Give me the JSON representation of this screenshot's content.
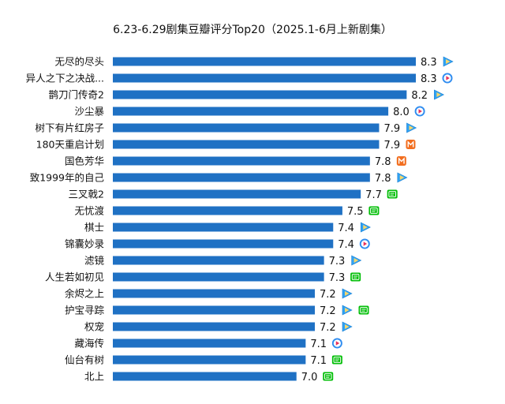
{
  "chart_data": {
    "type": "bar",
    "orientation": "horizontal",
    "title": "6.23-6.29剧集豆瓣评分Top20（2025.1-6月上新剧集）",
    "categories": [
      "无尽的尽头",
      "异人之下之决战...",
      "鹊刀门传奇2",
      "沙尘暴",
      "树下有片红房子",
      "180天重启计划",
      "国色芳华",
      "致1999年的自己",
      "三叉戟2",
      "无忧渡",
      "棋士",
      "锦囊妙录",
      "滤镜",
      "人生若如初见",
      "余烬之上",
      "护宝寻踪",
      "权宠",
      "藏海传",
      "仙台有树",
      "北上"
    ],
    "values": [
      8.3,
      8.3,
      8.2,
      8.0,
      7.9,
      7.9,
      7.8,
      7.8,
      7.7,
      7.5,
      7.4,
      7.4,
      7.3,
      7.3,
      7.2,
      7.2,
      7.2,
      7.1,
      7.1,
      7.0
    ],
    "value_labels": [
      "8.3",
      "8.3",
      "8.2",
      "8.0",
      "7.9",
      "7.9",
      "7.8",
      "7.8",
      "7.7",
      "7.5",
      "7.4",
      "7.4",
      "7.3",
      "7.3",
      "7.2",
      "7.2",
      "7.2",
      "7.1",
      "7.1",
      "7.0"
    ],
    "platforms": [
      [
        "tencent"
      ],
      [
        "youku"
      ],
      [
        "tencent"
      ],
      [
        "youku"
      ],
      [
        "tencent"
      ],
      [
        "mango"
      ],
      [
        "mango"
      ],
      [
        "tencent"
      ],
      [
        "iqiyi"
      ],
      [
        "iqiyi"
      ],
      [
        "tencent"
      ],
      [
        "youku"
      ],
      [
        "tencent"
      ],
      [
        "iqiyi"
      ],
      [
        "tencent"
      ],
      [
        "tencent",
        "iqiyi"
      ],
      [
        "tencent"
      ],
      [
        "youku"
      ],
      [
        "iqiyi"
      ],
      [
        "iqiyi"
      ]
    ],
    "xlim": [
      5.0,
      8.3
    ],
    "grid": false,
    "legend": "none"
  },
  "colors": {
    "bar": "#1F71C4",
    "tencent": "#2FA2F5",
    "tencent_play": "#F0C020",
    "youku": "#2E8CF0",
    "mango": "#F26E1F",
    "iqiyi": "#00BE06"
  },
  "icons": {
    "tencent": "tencent-video-icon",
    "youku": "youku-icon",
    "mango": "mango-tv-icon",
    "iqiyi": "iqiyi-icon"
  }
}
